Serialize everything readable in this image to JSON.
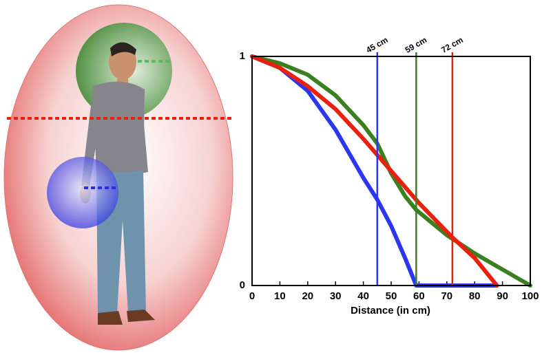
{
  "chart_data": {
    "type": "line",
    "xlabel": "Distance (in cm)",
    "xlim": [
      0,
      100
    ],
    "ylim": [
      0,
      1
    ],
    "xticks": [
      0,
      10,
      20,
      30,
      40,
      50,
      60,
      70,
      80,
      90,
      100
    ],
    "yticks": [
      0,
      1
    ],
    "series": [
      {
        "color": "#3a8020",
        "x": [
          0,
          10,
          20,
          30,
          40,
          45,
          50,
          55,
          59,
          70,
          80,
          90,
          100
        ],
        "values": [
          1,
          0.97,
          0.92,
          0.83,
          0.7,
          0.62,
          0.49,
          0.39,
          0.33,
          0.22,
          0.14,
          0.07,
          0
        ]
      },
      {
        "color": "#2a36f0",
        "x": [
          0,
          10,
          20,
          30,
          40,
          45,
          50,
          55,
          59,
          88
        ],
        "values": [
          1,
          0.95,
          0.85,
          0.68,
          0.47,
          0.375,
          0.26,
          0.12,
          0,
          0
        ]
      },
      {
        "color": "#e8200e",
        "x": [
          0,
          10,
          20,
          30,
          40,
          45,
          50,
          60,
          72,
          80,
          88
        ],
        "values": [
          1,
          0.95,
          0.87,
          0.77,
          0.64,
          0.57,
          0.5,
          0.36,
          0.21,
          0.12,
          0
        ]
      }
    ],
    "reference_lines": [
      {
        "value": 45,
        "label": "45 cm",
        "color": "#2a36f0"
      },
      {
        "value": 59,
        "label": "59 cm",
        "color": "#3a8020"
      },
      {
        "value": 72,
        "label": "72 cm",
        "color": "#e8200e"
      }
    ]
  }
}
